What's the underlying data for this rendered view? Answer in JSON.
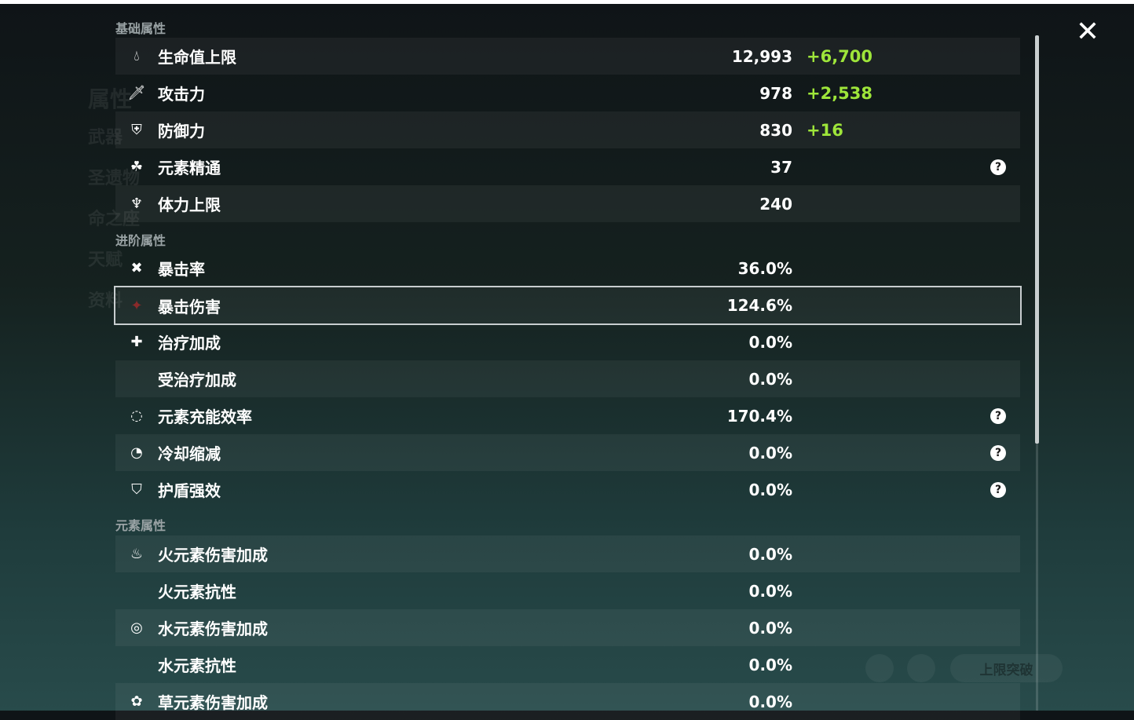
{
  "background": {
    "nav": [
      "属性",
      "武器",
      "圣遗物",
      "命之座",
      "天赋",
      "资料"
    ],
    "breakthrough_label": "上限突破"
  },
  "sections": {
    "basic": "基础属性",
    "advanced": "进阶属性",
    "elemental": "元素属性"
  },
  "basic": [
    {
      "icon": "hp-drop-icon",
      "label": "生命值上限",
      "value": "12,993",
      "bonus": "+6,700"
    },
    {
      "icon": "atk-sword-icon",
      "label": "攻击力",
      "value": "978",
      "bonus": "+2,538"
    },
    {
      "icon": "def-shield-icon",
      "label": "防御力",
      "value": "830",
      "bonus": "+16"
    },
    {
      "icon": "elemental-mastery-icon",
      "label": "元素精通",
      "value": "37",
      "help": true
    },
    {
      "icon": "stamina-icon",
      "label": "体力上限",
      "value": "240"
    }
  ],
  "advanced": [
    {
      "icon": "crit-rate-icon",
      "label": "暴击率",
      "value": "36.0%"
    },
    {
      "icon": "crit-dmg-icon",
      "label": "暴击伤害",
      "value": "124.6%",
      "selected": true
    },
    {
      "icon": "healing-cross-icon",
      "label": "治疗加成",
      "value": "0.0%"
    },
    {
      "icon": "",
      "label": "受治疗加成",
      "value": "0.0%"
    },
    {
      "icon": "energy-recharge-icon",
      "label": "元素充能效率",
      "value": "170.4%",
      "help": true
    },
    {
      "icon": "cd-reduction-icon",
      "label": "冷却缩减",
      "value": "0.0%",
      "help": true
    },
    {
      "icon": "shield-strength-icon",
      "label": "护盾强效",
      "value": "0.0%",
      "help": true
    }
  ],
  "elemental": [
    {
      "icon": "pyro-icon",
      "label": "火元素伤害加成",
      "value": "0.0%"
    },
    {
      "icon": "",
      "label": "火元素抗性",
      "value": "0.0%"
    },
    {
      "icon": "hydro-icon",
      "label": "水元素伤害加成",
      "value": "0.0%"
    },
    {
      "icon": "",
      "label": "水元素抗性",
      "value": "0.0%"
    },
    {
      "icon": "dendro-icon",
      "label": "草元素伤害加成",
      "value": "0.0%"
    }
  ],
  "colors": {
    "bonus": "#9ee53a",
    "text": "#ffffff",
    "section": "#9aa3a5"
  }
}
